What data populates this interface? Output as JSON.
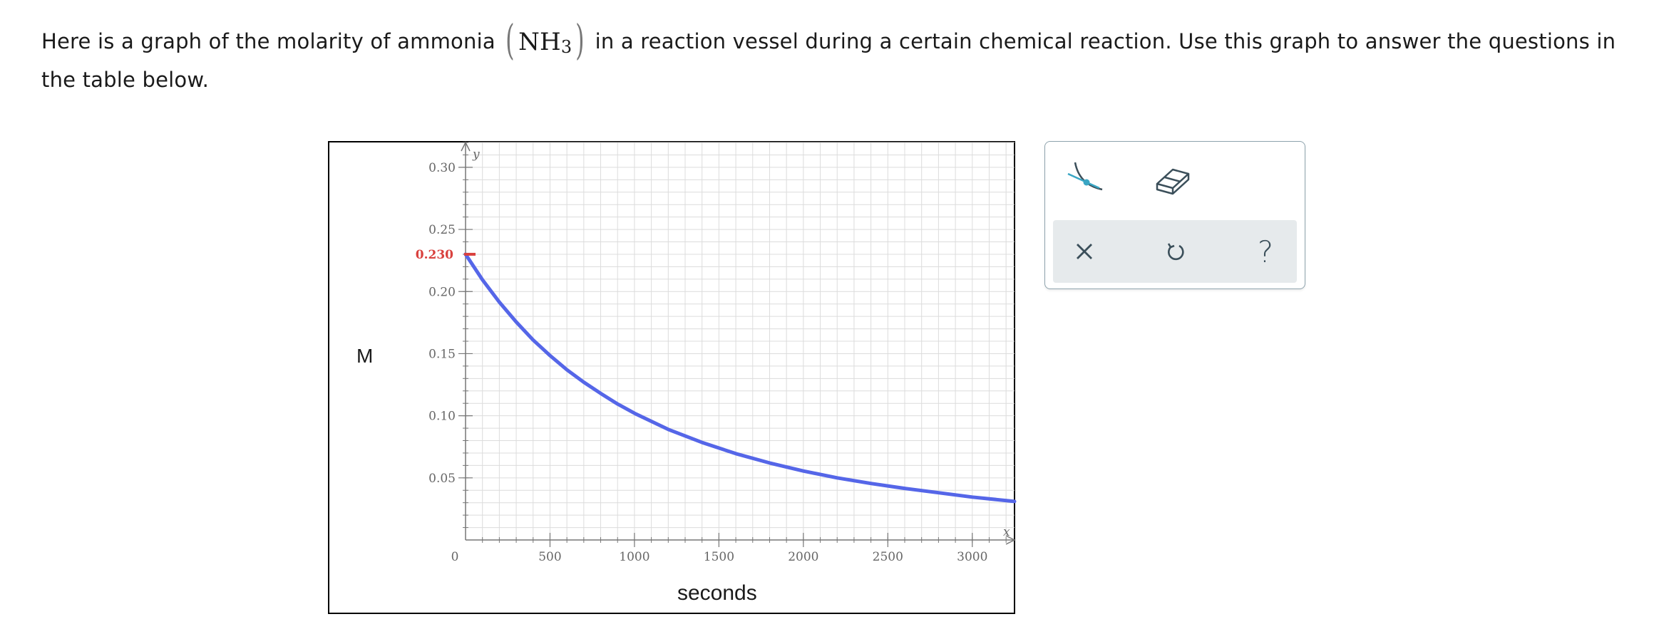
{
  "question": {
    "part1": "Here is a graph of the molarity of ammonia",
    "formula_base": "NH",
    "formula_sub": "3",
    "part2": "in a reaction vessel during a certain chemical reaction. Use this graph to answer the questions in the table below."
  },
  "axes": {
    "y_caption": "M",
    "x_caption": "seconds",
    "y_axis_letter": "y",
    "x_axis_letter": "x"
  },
  "chart_data": {
    "type": "line",
    "title": "",
    "xlabel": "seconds",
    "ylabel": "M",
    "xlim": [
      0,
      3250
    ],
    "ylim": [
      0,
      0.32
    ],
    "x_ticks": [
      0,
      500,
      1000,
      1500,
      2000,
      2500,
      3000
    ],
    "x_tick_labels": [
      "0",
      "500",
      "1000",
      "1500",
      "2000",
      "2500",
      "3000"
    ],
    "y_ticks": [
      0.05,
      0.1,
      0.15,
      0.2,
      0.25,
      0.3
    ],
    "y_tick_labels": [
      "0.05",
      "0.10",
      "0.15",
      "0.20",
      "0.25",
      "0.30"
    ],
    "highlighted_y": 0.23,
    "highlighted_y_label": "0.230",
    "grid": true,
    "series": [
      {
        "color": "#5566e8",
        "x": [
          0,
          100,
          200,
          300,
          400,
          500,
          600,
          700,
          800,
          900,
          1000,
          1200,
          1400,
          1600,
          1800,
          2000,
          2200,
          2400,
          2600,
          2800,
          3000,
          3250
        ],
        "y": [
          0.23,
          0.2095,
          0.1915,
          0.1755,
          0.161,
          0.1485,
          0.137,
          0.127,
          0.118,
          0.1095,
          0.102,
          0.089,
          0.0785,
          0.0695,
          0.062,
          0.0555,
          0.05,
          0.0455,
          0.0415,
          0.038,
          0.0345,
          0.031
        ]
      }
    ]
  },
  "colors": {
    "curve": "#5566e8",
    "highlight": "#d9413e",
    "grid": "#dcdcdc",
    "axis": "#777777"
  },
  "toolbox": {
    "tools": [
      "curve-point-icon",
      "eraser-icon"
    ],
    "actions": [
      "close-icon",
      "undo-icon",
      "help-icon"
    ],
    "help_glyph": "?"
  }
}
